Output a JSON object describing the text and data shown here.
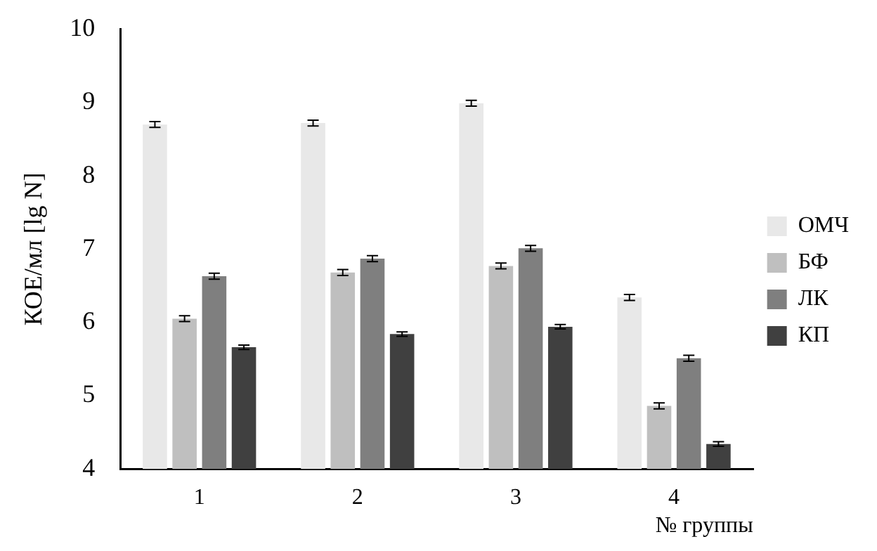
{
  "chart_data": {
    "type": "bar",
    "xlabel": "№ группы",
    "ylabel": "КОЕ/мл [lg N]",
    "categories": [
      "1",
      "2",
      "3",
      "4"
    ],
    "series": [
      {
        "name": "ОМЧ",
        "color": "#e8e8e8",
        "values": [
          8.7,
          8.72,
          8.99,
          6.34
        ],
        "errors": [
          0.04,
          0.04,
          0.04,
          0.04
        ]
      },
      {
        "name": "БФ",
        "color": "#bfbfbf",
        "values": [
          6.05,
          6.68,
          6.77,
          4.86
        ],
        "errors": [
          0.04,
          0.04,
          0.04,
          0.04
        ]
      },
      {
        "name": "ЛК",
        "color": "#7f7f7f",
        "values": [
          6.63,
          6.87,
          7.01,
          5.51
        ],
        "errors": [
          0.04,
          0.04,
          0.04,
          0.04
        ]
      },
      {
        "name": "КП",
        "color": "#404040",
        "values": [
          5.66,
          5.84,
          5.94,
          4.34
        ],
        "errors": [
          0.03,
          0.03,
          0.03,
          0.03
        ]
      }
    ],
    "ylim": [
      4,
      10
    ],
    "yticks": [
      4,
      5,
      6,
      7,
      8,
      9,
      10
    ],
    "grid": false,
    "legend": "right"
  }
}
